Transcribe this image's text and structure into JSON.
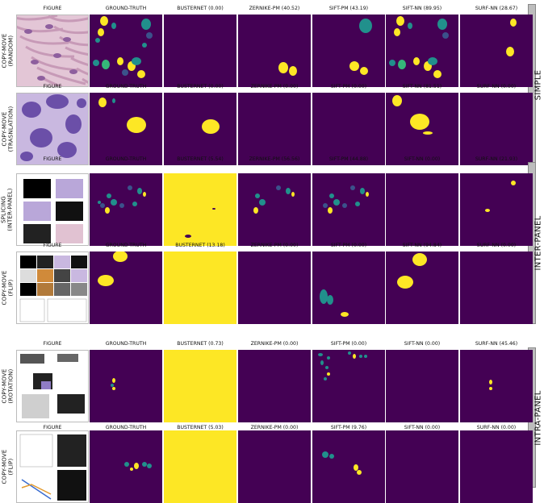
{
  "sections": [
    {
      "label": "SIMPLE",
      "rows": [
        {
          "label": "COPY-MOVE\n(RANDOM)",
          "figure": "histology-pink",
          "columns": [
            "FIGURE",
            "GROUND-TRUTH",
            "BUSTERNET (0.00)",
            "ZERNIKE-PM (40.52)",
            "SIFT-PM (43.19)",
            "SIFT-NN (89.95)",
            "SURF-NN (28.67)"
          ]
        },
        {
          "label": "COPY-MOVE\n(TRASNLATION)",
          "figure": "cells-purple",
          "columns": [
            "FIGURE",
            "GROUND-TRUTH",
            "BUSTERNET (0.00)",
            "ZERNIKE-PM (0.00)",
            "SIFT-PM (0.00)",
            "SIFT-NN (81.51)",
            "SURF-NN (0.00)"
          ]
        }
      ]
    },
    {
      "label": "INTER-PANEL",
      "rows": [
        {
          "label": "SPLICING\n(INTER-PANEL)",
          "figure": "panel-grid-6",
          "columns": [
            "FIGURE",
            "GROUND-TRUTH",
            "BUSTERNET (5.54)",
            "ZERNIKE-PM (56.56)",
            "SIFT-PM (44.88)",
            "SIFT-NN (0.00)",
            "SURF-NN (21.93)"
          ]
        },
        {
          "label": "COPY-MOVE\n(FLIP)",
          "figure": "panel-grid-micro",
          "columns": [
            "FIGURE",
            "GROUND-TRUTH",
            "BUSTERNET (13.18)",
            "ZERNIKE-PM (0.00)",
            "SIFT-PM (0.00)",
            "SIFT-NN (94.84)",
            "SURF-NN (0.00)"
          ]
        }
      ]
    },
    {
      "label": "INTRA-PANEL",
      "rows": [
        {
          "label": "COPY-MOVE\n(ROTATION)",
          "figure": "blot-figure",
          "columns": [
            "FIGURE",
            "GROUND-TRUTH",
            "BUSTERNET (0.73)",
            "ZERNIKE-PM (0.00)",
            "SIFT-PM (0.00)",
            "SIFT-NN (0.00)",
            "SURF-NN (45.46)"
          ]
        },
        {
          "label": "COPY-MOVE\n(FLIP)",
          "figure": "chart-figure",
          "columns": [
            "FIGURE",
            "GROUND-TRUTH",
            "BUSTERNET (5.03)",
            "ZERNIKE-PM (0.00)",
            "SIFT-PM (9.76)",
            "SIFT-NN (0.00)",
            "SURF-NN (0.00)"
          ]
        }
      ]
    }
  ],
  "colors": {
    "background": "#440154",
    "yellow": "#fde725",
    "teal": "#21908c",
    "blue": "#3b528b",
    "green": "#35b779"
  }
}
